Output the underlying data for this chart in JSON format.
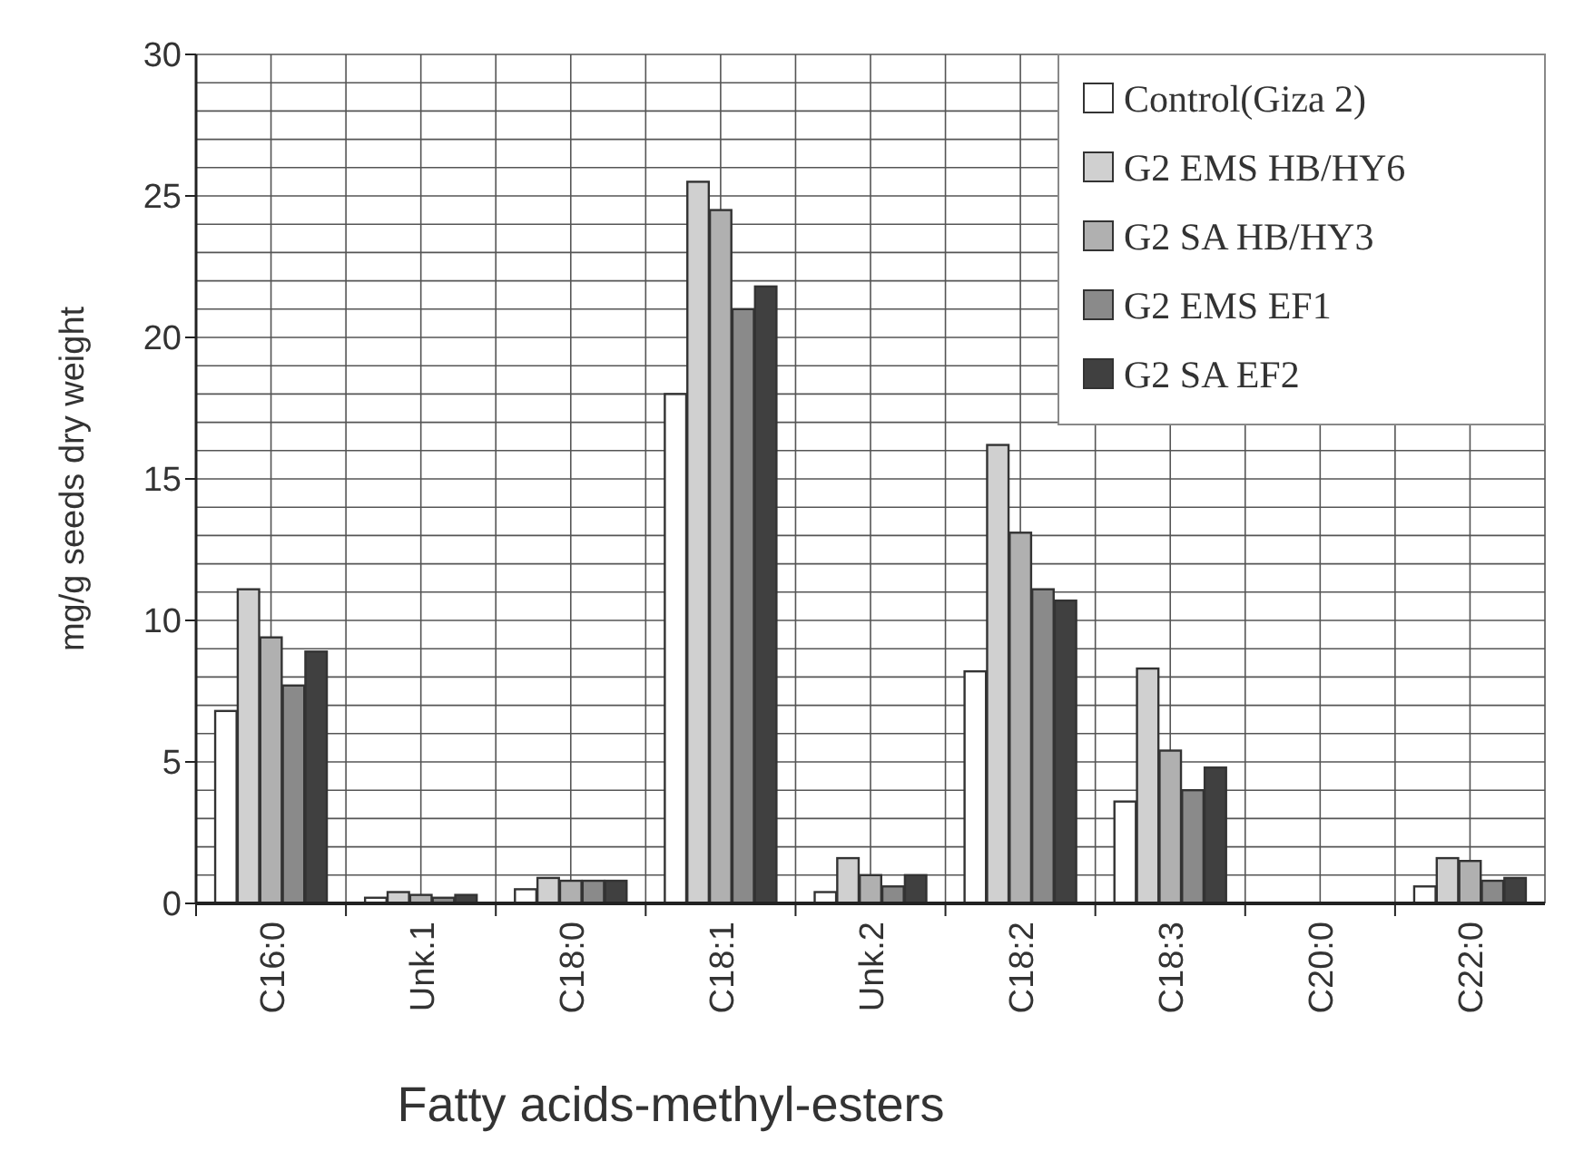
{
  "chart_data": {
    "type": "bar",
    "xlabel": "Fatty acids-methyl-esters",
    "ylabel": "mg/g seeds dry weight",
    "categories": [
      "C16:0",
      "Unk.1",
      "C18:0",
      "C18:1",
      "Unk.2",
      "C18:2",
      "C18:3",
      "C20:0",
      "C22:0"
    ],
    "series": [
      {
        "name": "Control(Giza 2)",
        "color": "#ffffff",
        "values": [
          6.8,
          0.2,
          0.5,
          18.0,
          0.4,
          8.2,
          3.6,
          null,
          0.6
        ]
      },
      {
        "name": "G2 EMS HB/HY6",
        "color": "#d0d0d0",
        "values": [
          11.1,
          0.4,
          0.9,
          25.5,
          1.6,
          16.2,
          8.3,
          null,
          1.6
        ]
      },
      {
        "name": "G2 SA HB/HY3",
        "color": "#b0b0b0",
        "values": [
          9.4,
          0.3,
          0.8,
          24.5,
          1.0,
          13.1,
          5.4,
          null,
          1.5
        ]
      },
      {
        "name": "G2 EMS EF1",
        "color": "#8a8a8a",
        "values": [
          7.7,
          0.2,
          0.8,
          21.0,
          0.6,
          11.1,
          4.0,
          null,
          0.8
        ]
      },
      {
        "name": "G2 SA EF2",
        "color": "#404040",
        "values": [
          8.9,
          0.3,
          0.8,
          21.8,
          1.0,
          10.7,
          4.8,
          null,
          0.9
        ]
      }
    ],
    "ylim": [
      0,
      30
    ],
    "yticks": [
      0,
      {
        "value": 1,
        "label": null
      },
      {
        "value": 2,
        "label": null
      },
      {
        "value": 3,
        "label": null
      },
      {
        "value": 4,
        "label": null
      },
      5,
      {
        "value": 6,
        "label": null
      },
      {
        "value": 7,
        "label": null
      },
      {
        "value": 8,
        "label": null
      },
      {
        "value": 9,
        "label": null
      },
      10,
      {
        "value": 11,
        "label": null
      },
      {
        "value": 12,
        "label": null
      },
      {
        "value": 13,
        "label": null
      },
      {
        "value": 14,
        "label": null
      },
      15,
      {
        "value": 16,
        "label": null
      },
      {
        "value": 17,
        "label": null
      },
      {
        "value": 18,
        "label": null
      },
      {
        "value": 19,
        "label": null
      },
      20,
      {
        "value": 21,
        "label": null
      },
      {
        "value": 22,
        "label": null
      },
      {
        "value": 23,
        "label": null
      },
      {
        "value": 24,
        "label": null
      },
      25,
      {
        "value": 26,
        "label": null
      },
      {
        "value": 27,
        "label": null
      },
      {
        "value": 28,
        "label": null
      },
      {
        "value": 29,
        "label": null
      },
      30
    ],
    "grid": true,
    "legend": "top right"
  }
}
